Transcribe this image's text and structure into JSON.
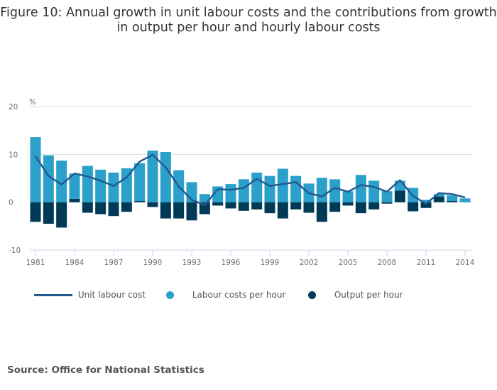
{
  "title": "Figure 10: Annual growth in unit labour costs and the contributions from growth in output per hour and hourly labour costs",
  "source": "Source: Office for National Statistics",
  "colors": {
    "labour": "#2aa0cb",
    "output": "#003a56",
    "ulc": "#235a90"
  },
  "chart_data": {
    "type": "bar",
    "stacked": true,
    "title": "Figure 10: Annual growth in unit labour costs and the contributions from growth in output per hour and hourly labour costs",
    "ylabel": "%",
    "ylim": [
      -10,
      20
    ],
    "yticks": [
      "20",
      "10",
      "0",
      "-10"
    ],
    "ytick_values": [
      20,
      10,
      0,
      -10
    ],
    "categories": [
      "1981",
      "1982",
      "1983",
      "1984",
      "1985",
      "1986",
      "1987",
      "1988",
      "1989",
      "1990",
      "1991",
      "1992",
      "1993",
      "1994",
      "1995",
      "1996",
      "1997",
      "1998",
      "1999",
      "2000",
      "2001",
      "2002",
      "2003",
      "2004",
      "2005",
      "2006",
      "2007",
      "2008",
      "2009",
      "2010",
      "2011",
      "2012",
      "2013",
      "2014"
    ],
    "xtick_labels": [
      "1981",
      "1984",
      "1987",
      "1990",
      "1993",
      "1996",
      "1999",
      "2002",
      "2005",
      "2008",
      "2011",
      "2014"
    ],
    "legend_position": "bottom",
    "series": [
      {
        "name": "Unit labour cost",
        "type": "line",
        "values": [
          9.6,
          5.5,
          3.7,
          6.0,
          5.4,
          4.5,
          3.4,
          5.2,
          8.5,
          9.9,
          7.3,
          3.3,
          0.5,
          -0.6,
          2.7,
          2.6,
          3.0,
          4.9,
          3.4,
          3.8,
          4.2,
          1.9,
          1.2,
          3.0,
          2.2,
          3.6,
          3.2,
          2.2,
          4.6,
          1.3,
          -0.3,
          1.9,
          1.7,
          1.0
        ]
      },
      {
        "name": "Labour costs per hour",
        "type": "bar",
        "values": [
          13.6,
          9.8,
          8.7,
          5.3,
          7.6,
          6.8,
          6.2,
          7.1,
          7.9,
          10.8,
          10.5,
          6.7,
          4.2,
          1.7,
          3.3,
          3.8,
          4.8,
          6.2,
          5.5,
          7.0,
          5.5,
          3.9,
          5.1,
          4.8,
          2.3,
          5.7,
          4.5,
          2.3,
          2.1,
          3.0,
          0.5,
          0.5,
          1.2,
          0.8
        ]
      },
      {
        "name": "Output per hour",
        "type": "bar",
        "values": [
          -4.1,
          -4.5,
          -5.3,
          0.7,
          -2.2,
          -2.5,
          -2.9,
          -2.0,
          0.25,
          -1.0,
          -3.4,
          -3.4,
          -3.8,
          -2.5,
          -0.7,
          -1.3,
          -1.8,
          -1.5,
          -2.3,
          -3.4,
          -1.5,
          -2.2,
          -4.1,
          -2.0,
          -0.7,
          -2.3,
          -1.5,
          -0.3,
          2.4,
          -1.9,
          -1.2,
          1.2,
          0.25,
          0
        ]
      }
    ]
  }
}
